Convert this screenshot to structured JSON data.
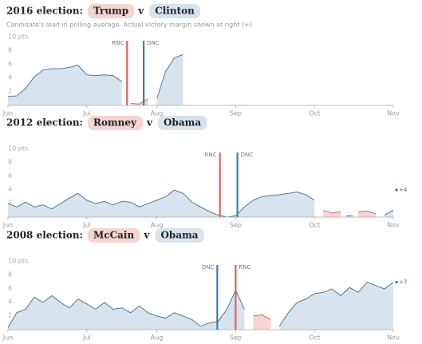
{
  "chart_data": [
    {
      "type": "area",
      "title": "2016 election:",
      "versus": "v",
      "subtitle": "Candidate's lead in polling average. Actual victory margin shown at right (+)",
      "categories": [
        "Jun",
        null,
        null,
        null,
        null,
        null,
        null,
        null,
        null,
        "Jul",
        null,
        null,
        null,
        null,
        null,
        null,
        null,
        "Aug",
        null,
        null,
        null,
        null,
        null,
        null,
        null,
        null,
        "Sep",
        null,
        null,
        null,
        null,
        null,
        null,
        null,
        null,
        "Oct",
        null,
        null,
        null,
        null,
        null,
        null,
        null,
        null,
        "Nov"
      ],
      "series": [
        {
          "name": "Trump",
          "color": "#c9615a",
          "fill": "#f6d4d0",
          "values": [
            null,
            null,
            null,
            null,
            null,
            null,
            null,
            null,
            null,
            null,
            null,
            null,
            null,
            null,
            0.3,
            0.2,
            1.0,
            null,
            null,
            null,
            null,
            null,
            null,
            null,
            null,
            null,
            null,
            null,
            null,
            null,
            null,
            null,
            null,
            null,
            null,
            null,
            null,
            null,
            null,
            null,
            null,
            null,
            null,
            null,
            null
          ]
        },
        {
          "name": "Clinton",
          "color": "#3b6f8f",
          "fill": "#d8e4ed",
          "values": [
            1.3,
            1.4,
            2.5,
            4.2,
            5.2,
            5.4,
            5.4,
            5.6,
            5.9,
            4.5,
            4.4,
            4.5,
            4.4,
            3.5,
            null,
            null,
            null,
            1.0,
            5,
            7,
            7.5,
            null,
            null,
            null,
            null,
            null,
            null,
            null,
            null,
            null,
            null,
            null,
            null,
            null,
            null,
            null,
            null,
            null,
            null,
            null,
            null,
            null,
            null,
            null,
            null
          ]
        }
      ],
      "conventions": [
        {
          "label": "RNC",
          "index": 13.6,
          "color": "#d9645e"
        },
        {
          "label": "DNC",
          "index": 15.5,
          "color": "#3d7ea6"
        }
      ],
      "ylim": [
        0,
        10
      ],
      "yticks": [
        2,
        4,
        6,
        8,
        {
          "value": 10,
          "label": "10 pts."
        }
      ]
    },
    {
      "type": "area",
      "title": "2012 election:",
      "versus": "v",
      "categories": [
        "Jun",
        null,
        null,
        null,
        null,
        null,
        null,
        null,
        null,
        "Jul",
        null,
        null,
        null,
        null,
        null,
        null,
        null,
        "Aug",
        null,
        null,
        null,
        null,
        null,
        null,
        null,
        null,
        "Sep",
        null,
        null,
        null,
        null,
        null,
        null,
        null,
        null,
        "Oct",
        null,
        null,
        null,
        null,
        null,
        null,
        null,
        null,
        "Nov"
      ],
      "series": [
        {
          "name": "Romney",
          "color": "#c9615a",
          "fill": "#f6d4d0",
          "values": [
            null,
            null,
            null,
            null,
            null,
            null,
            null,
            null,
            null,
            null,
            null,
            null,
            null,
            null,
            null,
            null,
            null,
            null,
            null,
            null,
            null,
            null,
            null,
            null,
            null,
            null,
            null,
            null,
            null,
            null,
            null,
            null,
            null,
            null,
            null,
            null,
            1,
            0.6,
            0.8,
            null,
            0.8,
            0.9,
            0.5,
            null,
            null
          ]
        },
        {
          "name": "Obama",
          "color": "#3b6f8f",
          "fill": "#d8e4ed",
          "values": [
            2,
            1.5,
            2.2,
            1.5,
            1.8,
            1.2,
            2,
            2.8,
            3.5,
            2.5,
            2,
            2.3,
            1.8,
            2.3,
            2.2,
            1.5,
            2,
            2.5,
            3,
            4,
            3.5,
            2.2,
            1.5,
            0.8,
            0.3,
            0,
            0.2,
            1.5,
            2.5,
            3,
            3.2,
            3.3,
            3.5,
            3.7,
            3.3,
            2.5,
            null,
            null,
            null,
            0.2,
            null,
            null,
            null,
            0.3,
            1
          ]
        }
      ],
      "conventions": [
        {
          "label": "RNC",
          "index": 24.2,
          "color": "#d9645e"
        },
        {
          "label": "DNC",
          "index": 26.2,
          "color": "#3d7ea6"
        }
      ],
      "final": {
        "value": 4,
        "label": "+4"
      },
      "ylim": [
        0,
        10
      ],
      "yticks": [
        2,
        4,
        6,
        8,
        {
          "value": 10,
          "label": "10 pts."
        }
      ]
    },
    {
      "type": "area",
      "title": "2008 election:",
      "versus": "v",
      "categories": [
        "Jun",
        null,
        null,
        null,
        null,
        null,
        null,
        null,
        null,
        "Jul",
        null,
        null,
        null,
        null,
        null,
        null,
        null,
        "Aug",
        null,
        null,
        null,
        null,
        null,
        null,
        null,
        null,
        "Sep",
        null,
        null,
        null,
        null,
        null,
        null,
        null,
        null,
        "Oct",
        null,
        null,
        null,
        null,
        null,
        null,
        null,
        null,
        "Nov"
      ],
      "series": [
        {
          "name": "McCain",
          "color": "#c9615a",
          "fill": "#f6d4d0",
          "values": [
            null,
            null,
            null,
            null,
            null,
            null,
            null,
            null,
            null,
            null,
            null,
            null,
            null,
            null,
            null,
            null,
            null,
            null,
            null,
            null,
            null,
            null,
            null,
            null,
            null,
            null,
            null,
            null,
            2,
            2.2,
            1.5,
            null,
            null,
            null,
            null,
            null,
            null,
            null,
            null,
            null,
            null,
            null,
            null,
            null,
            null
          ]
        },
        {
          "name": "Obama",
          "color": "#3b6f8f",
          "fill": "#d8e4ed",
          "values": [
            0.3,
            2.5,
            3,
            4.8,
            4,
            5,
            4,
            3.2,
            4.5,
            3.8,
            3,
            4,
            3,
            3.2,
            2.5,
            3.5,
            2.5,
            2,
            1.7,
            2.5,
            2,
            1.5,
            0.5,
            1,
            1.2,
            3,
            5.8,
            3,
            null,
            null,
            null,
            0.5,
            2.5,
            4,
            4.5,
            5.3,
            5.5,
            6,
            5,
            6.2,
            5.5,
            7,
            6.5,
            6,
            7
          ]
        }
      ],
      "conventions": [
        {
          "label": "DNC",
          "index": 23.9,
          "color": "#3d7ea6"
        },
        {
          "label": "RNC",
          "index": 26,
          "color": "#d9645e"
        }
      ],
      "final": {
        "value": 7,
        "label": "+7"
      },
      "ylim": [
        0,
        10
      ],
      "yticks": [
        2,
        4,
        6,
        8,
        {
          "value": 10,
          "label": "10 pts."
        }
      ]
    }
  ]
}
